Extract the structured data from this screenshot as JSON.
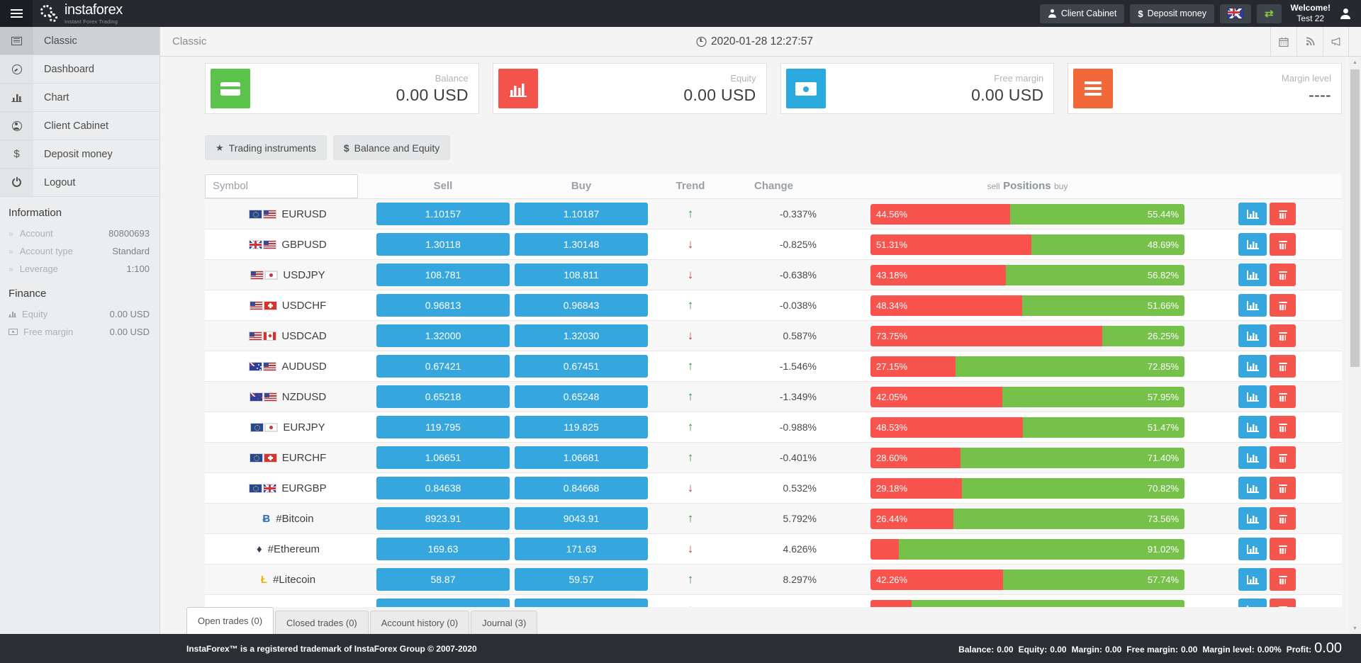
{
  "topbar": {
    "logo_name": "instaforex",
    "logo_tagline": "Instant Forex Trading",
    "client_cabinet": "Client Cabinet",
    "deposit_money": "Deposit money",
    "welcome": "Welcome!",
    "username": "Test 22"
  },
  "sidebar": {
    "items": [
      {
        "label": "Classic",
        "icon": "news",
        "active": true
      },
      {
        "label": "Dashboard",
        "icon": "gauge"
      },
      {
        "label": "Chart",
        "icon": "chart"
      },
      {
        "label": "Client Cabinet",
        "icon": "user"
      },
      {
        "label": "Deposit money",
        "icon": "dollar"
      },
      {
        "label": "Logout",
        "icon": "power"
      }
    ],
    "information_heading": "Information",
    "information": {
      "rows": [
        {
          "label": "Account",
          "value": "80800693"
        },
        {
          "label": "Account type",
          "value": "Standard"
        },
        {
          "label": "Leverage",
          "value": "1:100"
        }
      ]
    },
    "finance_heading": "Finance",
    "finance": {
      "rows": [
        {
          "label": "Equity",
          "value": "0.00 USD",
          "icon": "chart"
        },
        {
          "label": "Free margin",
          "value": "0.00 USD",
          "icon": "note"
        }
      ]
    }
  },
  "header": {
    "title": "Classic",
    "datetime": "2020-01-28 12:27:57"
  },
  "cards": [
    {
      "label": "Balance",
      "value": "0.00 USD",
      "icon": "card",
      "color": "#5bc24c"
    },
    {
      "label": "Equity",
      "value": "0.00 USD",
      "icon": "bars",
      "color": "#f4534b"
    },
    {
      "label": "Free margin",
      "value": "0.00 USD",
      "icon": "note",
      "color": "#2aa9df"
    },
    {
      "label": "Margin level",
      "value": "----",
      "icon": "lines",
      "color": "#f3683a"
    }
  ],
  "filters": [
    {
      "label": "Trading instruments",
      "icon": "star"
    },
    {
      "label": "Balance and Equity",
      "icon": "dollar"
    }
  ],
  "table": {
    "symbol_placeholder": "Symbol",
    "headers": {
      "sell": "Sell",
      "buy": "Buy",
      "trend": "Trend",
      "change": "Change",
      "positions_sell": "sell",
      "positions": "Positions",
      "positions_buy": "buy"
    },
    "rows": [
      {
        "symbol": "EURUSD",
        "flags": [
          "eu",
          "us"
        ],
        "sell": "1.10157",
        "buy": "1.10187",
        "trend": "up",
        "change": "-0.337%",
        "sell_pct": 44.56,
        "buy_pct": 55.44,
        "sell_label": "44.56%",
        "buy_label": "55.44%"
      },
      {
        "symbol": "GBPUSD",
        "flags": [
          "gb",
          "us"
        ],
        "sell": "1.30118",
        "buy": "1.30148",
        "trend": "down",
        "change": "-0.825%",
        "sell_pct": 51.31,
        "buy_pct": 48.69,
        "sell_label": "51.31%",
        "buy_label": "48.69%"
      },
      {
        "symbol": "USDJPY",
        "flags": [
          "us",
          "jp"
        ],
        "sell": "108.781",
        "buy": "108.811",
        "trend": "down",
        "change": "-0.638%",
        "sell_pct": 43.18,
        "buy_pct": 56.82,
        "sell_label": "43.18%",
        "buy_label": "56.82%"
      },
      {
        "symbol": "USDCHF",
        "flags": [
          "us",
          "ch"
        ],
        "sell": "0.96813",
        "buy": "0.96843",
        "trend": "up",
        "change": "-0.038%",
        "sell_pct": 48.34,
        "buy_pct": 51.66,
        "sell_label": "48.34%",
        "buy_label": "51.66%"
      },
      {
        "symbol": "USDCAD",
        "flags": [
          "us",
          "ca"
        ],
        "sell": "1.32000",
        "buy": "1.32030",
        "trend": "down",
        "change": "0.587%",
        "sell_pct": 73.75,
        "buy_pct": 26.25,
        "sell_label": "73.75%",
        "buy_label": "26.25%"
      },
      {
        "symbol": "AUDUSD",
        "flags": [
          "au",
          "us"
        ],
        "sell": "0.67421",
        "buy": "0.67451",
        "trend": "up",
        "change": "-1.546%",
        "sell_pct": 27.15,
        "buy_pct": 72.85,
        "sell_label": "27.15%",
        "buy_label": "72.85%"
      },
      {
        "symbol": "NZDUSD",
        "flags": [
          "nz",
          "us"
        ],
        "sell": "0.65218",
        "buy": "0.65248",
        "trend": "up",
        "change": "-1.349%",
        "sell_pct": 42.05,
        "buy_pct": 57.95,
        "sell_label": "42.05%",
        "buy_label": "57.95%"
      },
      {
        "symbol": "EURJPY",
        "flags": [
          "eu",
          "jp"
        ],
        "sell": "119.795",
        "buy": "119.825",
        "trend": "up",
        "change": "-0.988%",
        "sell_pct": 48.53,
        "buy_pct": 51.47,
        "sell_label": "48.53%",
        "buy_label": "51.47%"
      },
      {
        "symbol": "EURCHF",
        "flags": [
          "eu",
          "ch"
        ],
        "sell": "1.06651",
        "buy": "1.06681",
        "trend": "up",
        "change": "-0.401%",
        "sell_pct": 28.6,
        "buy_pct": 71.4,
        "sell_label": "28.60%",
        "buy_label": "71.40%"
      },
      {
        "symbol": "EURGBP",
        "flags": [
          "eu",
          "gb"
        ],
        "sell": "0.84638",
        "buy": "0.84668",
        "trend": "down",
        "change": "0.532%",
        "sell_pct": 29.18,
        "buy_pct": 70.82,
        "sell_label": "29.18%",
        "buy_label": "70.82%"
      },
      {
        "symbol": "#Bitcoin",
        "crypto": "btc",
        "sell": "8923.91",
        "buy": "9043.91",
        "trend": "up",
        "change": "5.792%",
        "sell_pct": 26.44,
        "buy_pct": 73.56,
        "sell_label": "26.44%",
        "buy_label": "73.56%"
      },
      {
        "symbol": "#Ethereum",
        "crypto": "eth",
        "sell": "169.63",
        "buy": "171.63",
        "trend": "down",
        "change": "4.626%",
        "sell_pct": 8.98,
        "buy_pct": 91.02,
        "sell_label": "",
        "buy_label": "91.02%"
      },
      {
        "symbol": "#Litecoin",
        "crypto": "ltc",
        "sell": "58.87",
        "buy": "59.57",
        "trend": "up",
        "change": "8.297%",
        "sell_pct": 42.26,
        "buy_pct": 57.74,
        "sell_label": "42.26%",
        "buy_label": "57.74%"
      },
      {
        "symbol": "",
        "crypto": "xrp",
        "partial": true,
        "sell": "",
        "buy": "",
        "trend": "down",
        "change": "",
        "sell_pct": 13,
        "buy_pct": 87,
        "sell_label": "",
        "buy_label": ""
      }
    ]
  },
  "tabs": [
    {
      "label": "Open trades (0)",
      "active": true
    },
    {
      "label": "Closed trades (0)"
    },
    {
      "label": "Account history (0)"
    },
    {
      "label": "Journal (3)"
    }
  ],
  "footer": {
    "left": "InstaForex™ is a registered trademark of InstaForex Group © 2007-2020",
    "stats": [
      {
        "label": "Balance:",
        "value": "0.00"
      },
      {
        "label": "Equity:",
        "value": "0.00"
      },
      {
        "label": "Margin:",
        "value": "0.00"
      },
      {
        "label": "Free margin:",
        "value": "0.00"
      },
      {
        "label": "Margin level:",
        "value": "0.00%"
      },
      {
        "label": "Profit:",
        "value": "0.00"
      }
    ]
  }
}
